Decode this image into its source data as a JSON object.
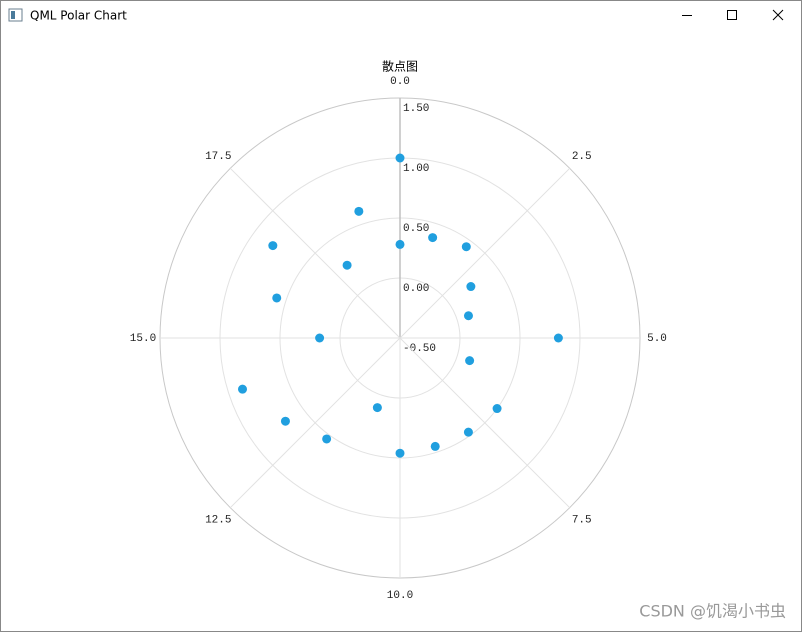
{
  "window": {
    "title": "QML Polar Chart"
  },
  "watermark": "CSDN @饥渴小书虫",
  "chart_data": {
    "type": "scatter",
    "title": "散点图",
    "x": [
      0,
      0,
      1,
      2,
      3,
      4,
      5,
      6,
      7,
      8,
      9,
      10,
      11,
      12,
      13,
      14,
      15,
      16,
      17,
      18,
      19
    ],
    "values": [
      1.0,
      0.28,
      0.38,
      0.44,
      0.23,
      0.1,
      0.82,
      0.11,
      0.5,
      0.47,
      0.45,
      0.46,
      0.11,
      0.54,
      0.68,
      0.88,
      0.17,
      0.58,
      0.81,
      0.25,
      0.61
    ],
    "color": "#209fdf",
    "xlim": [
      0,
      20
    ],
    "xticks": [
      {
        "value": 0,
        "label": "0.0"
      },
      2.5,
      {
        "value": 5,
        "label": "5.0"
      },
      7.5,
      {
        "value": 10,
        "label": "10.0"
      },
      12.5,
      {
        "value": 15,
        "label": "15.0"
      },
      17.5
    ],
    "ylim": [
      -0.5,
      1.5
    ],
    "yticks": [
      {
        "value": -0.5,
        "label": "-0.50"
      },
      {
        "value": 0,
        "label": "0.00"
      },
      {
        "value": 0.5,
        "label": "0.50"
      },
      {
        "value": 1,
        "label": "1.00"
      },
      {
        "value": 1.5,
        "label": "1.50"
      }
    ],
    "grid": true
  }
}
